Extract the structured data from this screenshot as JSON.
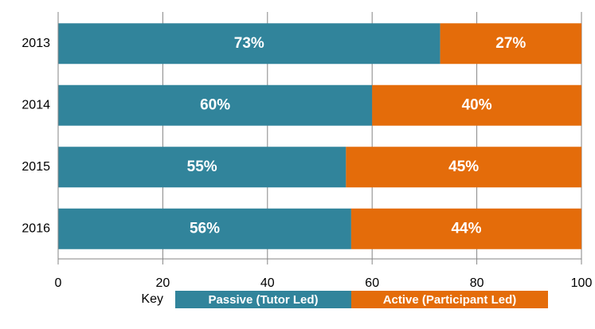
{
  "chart_data": {
    "type": "stacked-barh",
    "categories": [
      "2013",
      "2014",
      "2015",
      "2016"
    ],
    "series": [
      {
        "name": "Passive (Tutor Led)",
        "color": "#31849b",
        "values": [
          73,
          60,
          55,
          56
        ],
        "value_labels": [
          "73%",
          "60%",
          "55%",
          "56%"
        ]
      },
      {
        "name": "Active (Participant Led)",
        "color": "#e46c0a",
        "values": [
          27,
          40,
          45,
          44
        ],
        "value_labels": [
          "27%",
          "40%",
          "45%",
          "44%"
        ]
      }
    ],
    "xlim": [
      0,
      100
    ],
    "xticks": [
      0,
      20,
      40,
      60,
      80,
      100
    ],
    "grid": true,
    "legend_title": "Key",
    "legend_position": "bottom"
  }
}
